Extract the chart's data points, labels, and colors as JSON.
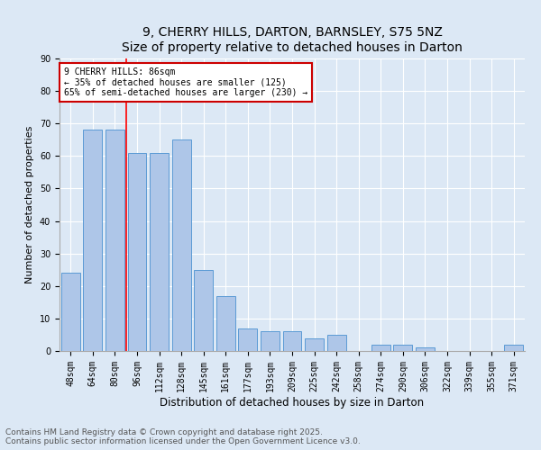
{
  "title": "9, CHERRY HILLS, DARTON, BARNSLEY, S75 5NZ",
  "subtitle": "Size of property relative to detached houses in Darton",
  "xlabel": "Distribution of detached houses by size in Darton",
  "ylabel": "Number of detached properties",
  "categories": [
    "48sqm",
    "64sqm",
    "80sqm",
    "96sqm",
    "112sqm",
    "128sqm",
    "145sqm",
    "161sqm",
    "177sqm",
    "193sqm",
    "209sqm",
    "225sqm",
    "242sqm",
    "258sqm",
    "274sqm",
    "290sqm",
    "306sqm",
    "322sqm",
    "339sqm",
    "355sqm",
    "371sqm"
  ],
  "values": [
    24,
    68,
    68,
    61,
    61,
    65,
    25,
    17,
    7,
    6,
    6,
    4,
    5,
    0,
    2,
    2,
    1,
    0,
    0,
    0,
    2
  ],
  "bar_color": "#aec6e8",
  "bar_edge_color": "#5b9bd5",
  "red_line_x": 2.5,
  "annotation_text": "9 CHERRY HILLS: 86sqm\n← 35% of detached houses are smaller (125)\n65% of semi-detached houses are larger (230) →",
  "annotation_box_color": "#ffffff",
  "annotation_box_edge_color": "#cc0000",
  "ylim": [
    0,
    90
  ],
  "yticks": [
    0,
    10,
    20,
    30,
    40,
    50,
    60,
    70,
    80,
    90
  ],
  "background_color": "#dce8f5",
  "grid_color": "#ffffff",
  "footer_text": "Contains HM Land Registry data © Crown copyright and database right 2025.\nContains public sector information licensed under the Open Government Licence v3.0.",
  "title_fontsize": 10,
  "xlabel_fontsize": 8.5,
  "ylabel_fontsize": 8,
  "tick_fontsize": 7,
  "annotation_fontsize": 7,
  "footer_fontsize": 6.5
}
